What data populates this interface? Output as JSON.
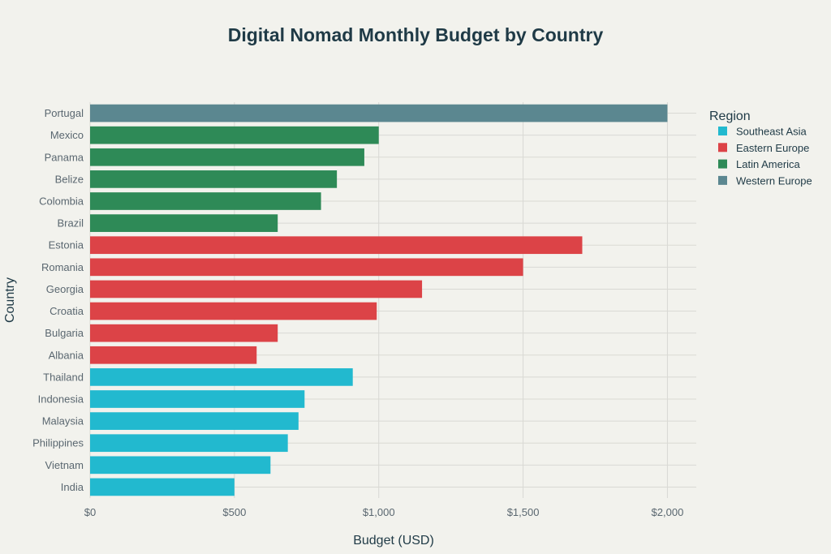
{
  "chart_data": {
    "type": "bar",
    "orientation": "horizontal",
    "title": "Digital Nomad Monthly Budget by Country",
    "xlabel": "Budget (USD)",
    "ylabel": "Country",
    "xlim": [
      0,
      2100
    ],
    "x_ticks": [
      0,
      500,
      1000,
      1500,
      2000
    ],
    "x_tick_labels": [
      "$0",
      "$500",
      "$1,000",
      "$1,500",
      "$2,000"
    ],
    "grid": true,
    "legend_title": "Region",
    "legend_position": "right",
    "regions": [
      {
        "name": "Southeast Asia",
        "color": "#22b9cf"
      },
      {
        "name": "Eastern Europe",
        "color": "#dc4347"
      },
      {
        "name": "Latin America",
        "color": "#2e8a57"
      },
      {
        "name": "Western Europe",
        "color": "#5b8790"
      }
    ],
    "bars": [
      {
        "country": "Portugal",
        "value": 2000,
        "region": "Western Europe"
      },
      {
        "country": "Mexico",
        "value": 1000,
        "region": "Latin America"
      },
      {
        "country": "Panama",
        "value": 950,
        "region": "Latin America"
      },
      {
        "country": "Belize",
        "value": 855,
        "region": "Latin America"
      },
      {
        "country": "Colombia",
        "value": 800,
        "region": "Latin America"
      },
      {
        "country": "Brazil",
        "value": 650,
        "region": "Latin America"
      },
      {
        "country": "Estonia",
        "value": 1705,
        "region": "Eastern Europe"
      },
      {
        "country": "Romania",
        "value": 1500,
        "region": "Eastern Europe"
      },
      {
        "country": "Georgia",
        "value": 1150,
        "region": "Eastern Europe"
      },
      {
        "country": "Croatia",
        "value": 993,
        "region": "Eastern Europe"
      },
      {
        "country": "Bulgaria",
        "value": 650,
        "region": "Eastern Europe"
      },
      {
        "country": "Albania",
        "value": 577,
        "region": "Eastern Europe"
      },
      {
        "country": "Thailand",
        "value": 910,
        "region": "Southeast Asia"
      },
      {
        "country": "Indonesia",
        "value": 743,
        "region": "Southeast Asia"
      },
      {
        "country": "Malaysia",
        "value": 722,
        "region": "Southeast Asia"
      },
      {
        "country": "Philippines",
        "value": 685,
        "region": "Southeast Asia"
      },
      {
        "country": "Vietnam",
        "value": 625,
        "region": "Southeast Asia"
      },
      {
        "country": "India",
        "value": 500,
        "region": "Southeast Asia"
      }
    ]
  }
}
